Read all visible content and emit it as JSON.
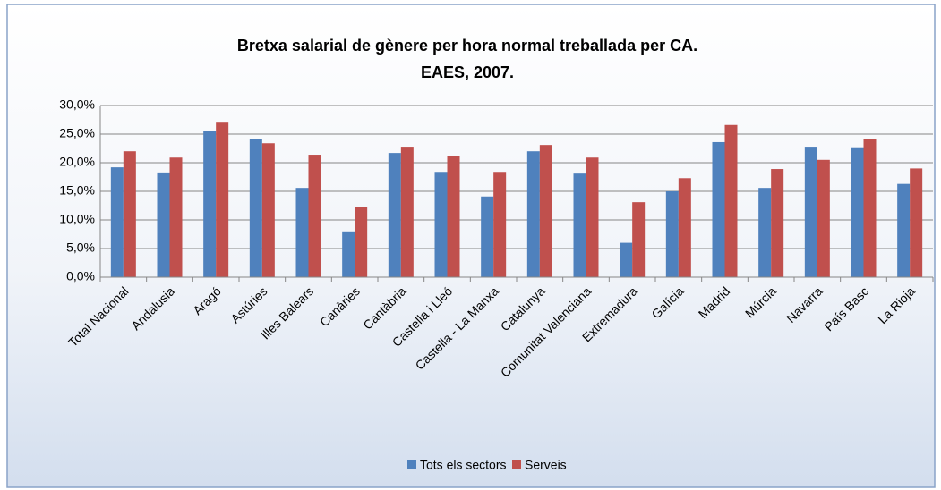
{
  "chart_data": {
    "type": "bar",
    "title": "Bretxa salarial de gènere per hora normal treballada per CA.",
    "subtitle": "EAES, 2007.",
    "categories": [
      "Total Nacional",
      "Andalusia",
      "Aragó",
      "Astúries",
      "Illes Balears",
      "Canàries",
      "Cantàbria",
      "Castella i Lleó",
      "Castella - La Manxa",
      "Catalunya",
      "Comunitat Valenciana",
      "Extremadura",
      "Galícia",
      "Madrid",
      "Múrcia",
      "Navarra",
      "País Basc",
      "La Rioja"
    ],
    "series": [
      {
        "name": "Tots els sectors",
        "color": "#4f81bd",
        "values": [
          19.2,
          18.3,
          25.6,
          24.2,
          15.6,
          8.0,
          21.7,
          18.4,
          14.1,
          22.0,
          18.1,
          6.0,
          15.0,
          23.6,
          15.6,
          22.8,
          22.7,
          16.3
        ]
      },
      {
        "name": "Serveis",
        "color": "#c0504d",
        "values": [
          22.0,
          20.9,
          27.0,
          23.4,
          21.4,
          12.2,
          22.8,
          21.2,
          18.4,
          23.1,
          20.9,
          13.1,
          17.3,
          26.6,
          18.9,
          20.5,
          24.1,
          19.0
        ]
      }
    ],
    "ylim": [
      0,
      30
    ],
    "yticks": [
      {
        "value": 0,
        "label": "0,0%"
      },
      {
        "value": 5,
        "label": "5,0%"
      },
      {
        "value": 10,
        "label": "10,0%"
      },
      {
        "value": 15,
        "label": "15,0%"
      },
      {
        "value": 20,
        "label": "20,0%"
      },
      {
        "value": 25,
        "label": "25,0%"
      },
      {
        "value": 30,
        "label": "30,0%"
      }
    ],
    "grid": true,
    "legend": "bottom"
  }
}
